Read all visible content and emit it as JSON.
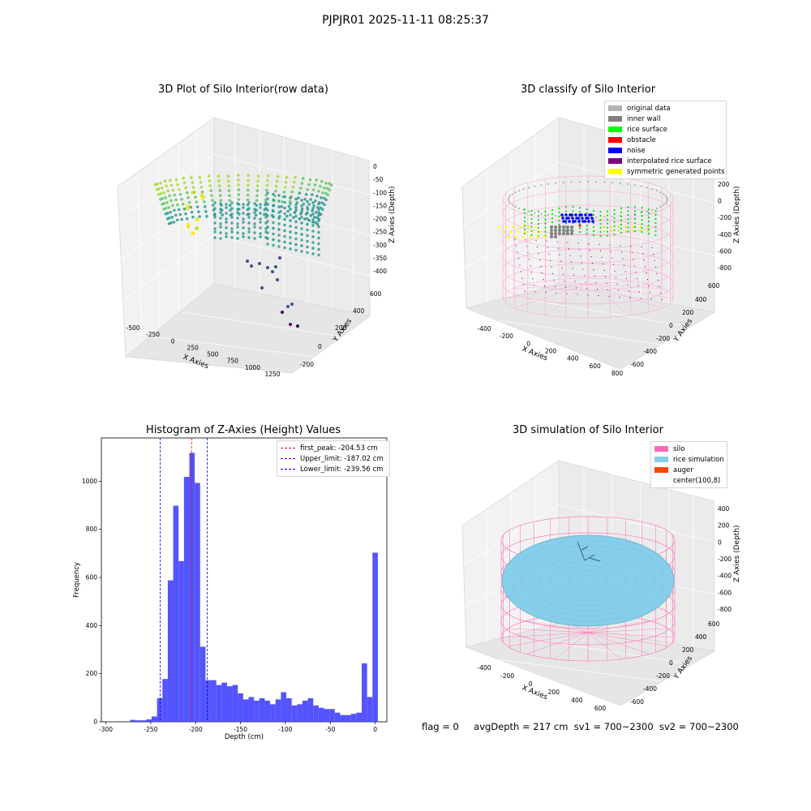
{
  "suptitle": "PJPJR01 2025-11-11 08:25:37",
  "panels": {
    "raw": {
      "title": "3D Plot of Silo Interior(row data)",
      "xlabel": "X Axies",
      "ylabel": "Y Axies",
      "zlabel": "Z Axies (Depth)",
      "xticks": [
        "-500",
        "-250",
        "0",
        "250",
        "500",
        "750",
        "1000",
        "1250"
      ],
      "yticks": [
        "-200",
        "0",
        "200",
        "400",
        "600"
      ],
      "zticks": [
        "0",
        "-50",
        "-100",
        "-150",
        "-200",
        "-250",
        "-300",
        "-350",
        "-400"
      ]
    },
    "classify": {
      "title": "3D classify of Silo Interior",
      "xlabel": "X Axies",
      "ylabel": "Y Axies",
      "zlabel": "Z Axies (Depth)",
      "xticks": [
        "-400",
        "-200",
        "0",
        "200",
        "400",
        "600",
        "800"
      ],
      "yticks": [
        "-600",
        "-400",
        "-200",
        "0",
        "200",
        "400",
        "600"
      ],
      "zticks": [
        "200",
        "0",
        "-200",
        "-400",
        "-600",
        "-800"
      ],
      "zticks_top": "00",
      "legend": [
        {
          "label": "original data",
          "color": "#b3b3b3"
        },
        {
          "label": "inner wall",
          "color": "#808080"
        },
        {
          "label": "rice surface",
          "color": "#00ff00"
        },
        {
          "label": "obstacle",
          "color": "#ff0000"
        },
        {
          "label": "noise",
          "color": "#0000ff"
        },
        {
          "label": "interpolated rice surface",
          "color": "#800080"
        },
        {
          "label": "symmetric generated points",
          "color": "#ffff00"
        }
      ]
    },
    "simulation": {
      "title": "3D simulation of Silo Interior",
      "xlabel": "X Axies",
      "ylabel": "Y Axies",
      "zlabel": "Z Axies (Depth)",
      "xticks": [
        "-400",
        "-200",
        "0",
        "200",
        "400",
        "600"
      ],
      "yticks": [
        "-600",
        "-400",
        "-200",
        "0",
        "200",
        "400",
        "600"
      ],
      "zticks": [
        "400",
        "200",
        "0",
        "-200",
        "-400",
        "-600",
        "-800"
      ],
      "legend": [
        {
          "label": "silo",
          "color": "#ff69b4"
        },
        {
          "label": "rice simulation",
          "color": "#87ceeb"
        },
        {
          "label": "auger",
          "color": "#ff4500"
        },
        {
          "label": "center(100,8)",
          "color": "#ffffff"
        }
      ]
    }
  },
  "status": {
    "flag": "flag = 0",
    "avg": "avgDepth = 217 cm",
    "sv1": "sv1 = 700~2300",
    "sv2": "sv2 = 700~2300"
  },
  "colors": {
    "bars": "#4b4bff",
    "peak": "#ff0000",
    "limit": "#0000ff"
  },
  "chart_data": {
    "type": "bar",
    "title": "Histogram of Z-Axies (Height) Values",
    "xlabel": "Depth (cm)",
    "ylabel": "Frequency",
    "xlim": [
      -305,
      13
    ],
    "ylim": [
      0,
      1180
    ],
    "xticks": [
      -300,
      -250,
      -200,
      -150,
      -100,
      -50,
      0
    ],
    "yticks": [
      0,
      200,
      400,
      600,
      800,
      1000
    ],
    "bin_width": 6,
    "bins": [
      {
        "x": -270,
        "y": 8
      },
      {
        "x": -264,
        "y": 6
      },
      {
        "x": -258,
        "y": 6
      },
      {
        "x": -252,
        "y": 10
      },
      {
        "x": -246,
        "y": 22
      },
      {
        "x": -240,
        "y": 98
      },
      {
        "x": -234,
        "y": 178
      },
      {
        "x": -228,
        "y": 588
      },
      {
        "x": -222,
        "y": 898
      },
      {
        "x": -216,
        "y": 668
      },
      {
        "x": -210,
        "y": 1018
      },
      {
        "x": -204,
        "y": 1118
      },
      {
        "x": -198,
        "y": 993
      },
      {
        "x": -192,
        "y": 312
      },
      {
        "x": -186,
        "y": 173
      },
      {
        "x": -180,
        "y": 173
      },
      {
        "x": -174,
        "y": 153
      },
      {
        "x": -168,
        "y": 163
      },
      {
        "x": -162,
        "y": 148
      },
      {
        "x": -156,
        "y": 153
      },
      {
        "x": -150,
        "y": 118
      },
      {
        "x": -144,
        "y": 93
      },
      {
        "x": -138,
        "y": 103
      },
      {
        "x": -132,
        "y": 88
      },
      {
        "x": -126,
        "y": 98
      },
      {
        "x": -120,
        "y": 88
      },
      {
        "x": -114,
        "y": 73
      },
      {
        "x": -108,
        "y": 93
      },
      {
        "x": -102,
        "y": 123
      },
      {
        "x": -96,
        "y": 98
      },
      {
        "x": -90,
        "y": 68
      },
      {
        "x": -84,
        "y": 73
      },
      {
        "x": -78,
        "y": 88
      },
      {
        "x": -72,
        "y": 98
      },
      {
        "x": -66,
        "y": 68
      },
      {
        "x": -60,
        "y": 58
      },
      {
        "x": -54,
        "y": 53
      },
      {
        "x": -48,
        "y": 53
      },
      {
        "x": -42,
        "y": 38
      },
      {
        "x": -36,
        "y": 28
      },
      {
        "x": -30,
        "y": 28
      },
      {
        "x": -24,
        "y": 33
      },
      {
        "x": -18,
        "y": 38
      },
      {
        "x": -12,
        "y": 243
      },
      {
        "x": -6,
        "y": 103
      },
      {
        "x": 0,
        "y": 703
      }
    ],
    "lines": [
      {
        "name": "first_peak: -204.53 cm",
        "x": -204.53,
        "color": "#ff0000"
      },
      {
        "name": "Upper_limit: -187.02 cm",
        "x": -187.02,
        "color": "#0000ff"
      },
      {
        "name": "Lower_limit: -239.56 cm",
        "x": -239.56,
        "color": "#0000ff"
      }
    ],
    "grid": false,
    "legend_position": "top-right"
  }
}
